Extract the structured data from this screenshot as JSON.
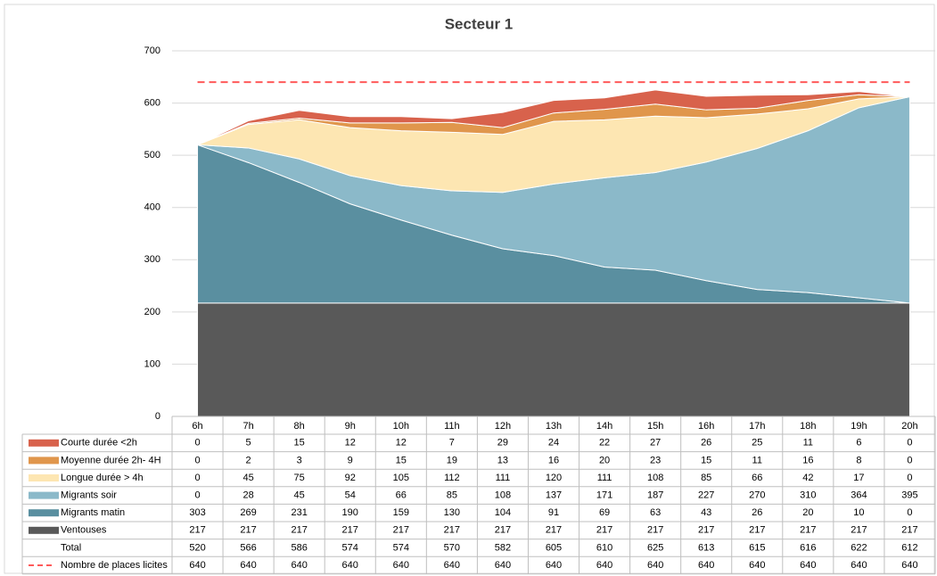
{
  "chart_data": {
    "type": "area",
    "title": "Secteur 1",
    "categories": [
      "6h",
      "7h",
      "8h",
      "9h",
      "10h",
      "11h",
      "12h",
      "13h",
      "14h",
      "15h",
      "16h",
      "17h",
      "18h",
      "19h",
      "20h"
    ],
    "series": [
      {
        "name": "Courte durée <2h",
        "color": "#d8624c",
        "values": [
          0,
          5,
          15,
          12,
          12,
          7,
          29,
          24,
          22,
          27,
          26,
          25,
          11,
          6,
          0
        ]
      },
      {
        "name": "Moyenne durée 2h- 4H",
        "color": "#e0964c",
        "values": [
          0,
          2,
          3,
          9,
          15,
          19,
          13,
          16,
          20,
          23,
          15,
          11,
          16,
          8,
          0
        ]
      },
      {
        "name": "Longue durée > 4h",
        "color": "#fde6b2",
        "values": [
          0,
          45,
          75,
          92,
          105,
          112,
          111,
          120,
          111,
          108,
          85,
          66,
          42,
          17,
          0
        ]
      },
      {
        "name": "Migrants soir",
        "color": "#8bb9c9",
        "values": [
          0,
          28,
          45,
          54,
          66,
          85,
          108,
          137,
          171,
          187,
          227,
          270,
          310,
          364,
          395
        ]
      },
      {
        "name": "Migrants matin",
        "color": "#5a8fa0",
        "values": [
          303,
          269,
          231,
          190,
          159,
          130,
          104,
          91,
          69,
          63,
          43,
          26,
          20,
          10,
          0
        ]
      },
      {
        "name": "Ventouses",
        "color": "#595959",
        "values": [
          217,
          217,
          217,
          217,
          217,
          217,
          217,
          217,
          217,
          217,
          217,
          217,
          217,
          217,
          217
        ]
      }
    ],
    "total": {
      "name": "Total",
      "values": [
        520,
        566,
        586,
        574,
        574,
        570,
        582,
        605,
        610,
        625,
        613,
        615,
        616,
        622,
        612
      ]
    },
    "reference_line": {
      "name": "Nombre de places licites",
      "color": "#ff5a5a",
      "dashed": true,
      "values": [
        640,
        640,
        640,
        640,
        640,
        640,
        640,
        640,
        640,
        640,
        640,
        640,
        640,
        640,
        640
      ]
    },
    "ylim": [
      0,
      700
    ],
    "yticks": [
      0,
      100,
      200,
      300,
      400,
      500,
      600,
      700
    ],
    "grid": true
  }
}
